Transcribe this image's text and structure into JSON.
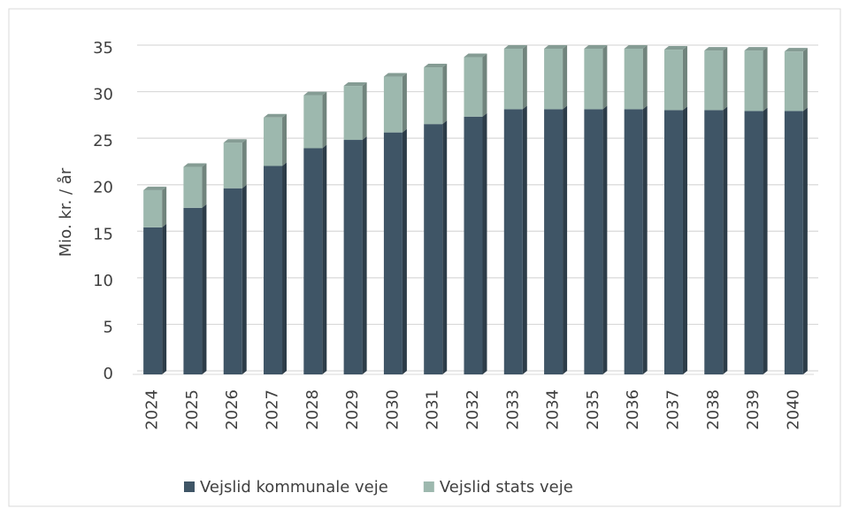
{
  "chart_data": {
    "type": "bar",
    "stacked": true,
    "y_label": "Mio. kr. / år",
    "categories": [
      "2024",
      "2025",
      "2026",
      "2027",
      "2028",
      "2029",
      "2030",
      "2031",
      "2032",
      "2033",
      "2034",
      "2035",
      "2036",
      "2037",
      "2038",
      "2039",
      "2040"
    ],
    "series": [
      {
        "name": "Vejslid kommunale veje",
        "color": "#3f5566",
        "values": [
          15.8,
          17.9,
          20.0,
          22.4,
          24.3,
          25.2,
          26.0,
          26.9,
          27.7,
          28.5,
          28.5,
          28.5,
          28.5,
          28.4,
          28.4,
          28.3,
          28.3
        ]
      },
      {
        "name": "Vejslid stats veje",
        "color": "#9db8ae",
        "values": [
          4.0,
          4.4,
          4.9,
          5.2,
          5.7,
          5.8,
          6.0,
          6.1,
          6.4,
          6.5,
          6.5,
          6.5,
          6.5,
          6.5,
          6.4,
          6.5,
          6.4
        ]
      }
    ],
    "ylim": [
      0,
      35
    ],
    "yticks": [
      0,
      5,
      10,
      15,
      20,
      25,
      30,
      35
    ],
    "grid": true,
    "legend": "bottom"
  }
}
